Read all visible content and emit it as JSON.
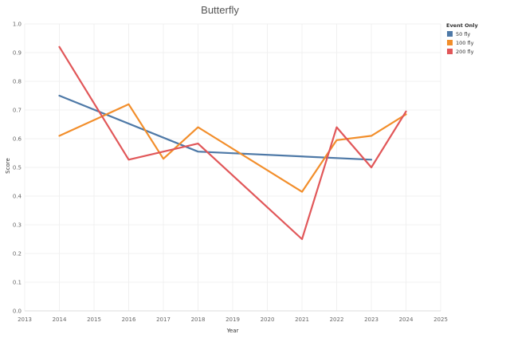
{
  "chart_data": {
    "type": "line",
    "title": "Butterfly",
    "xlabel": "Year",
    "ylabel": "Score",
    "xlim": [
      2013,
      2025
    ],
    "ylim": [
      0.0,
      1.0
    ],
    "x_ticks": [
      "2013",
      "2014",
      "2015",
      "2016",
      "2017",
      "2018",
      "2019",
      "2020",
      "2021",
      "2022",
      "2023",
      "2024",
      "2025"
    ],
    "y_ticks": [
      "0.0",
      "0.1",
      "0.2",
      "0.3",
      "0.4",
      "0.5",
      "0.6",
      "0.7",
      "0.8",
      "0.9",
      "1.0"
    ],
    "grid": true,
    "legend": {
      "title": "Event Only",
      "placement": "top-right"
    },
    "series": [
      {
        "name": "50 fly",
        "color": "#4e79a7",
        "points": [
          [
            2014,
            0.75
          ],
          [
            2018,
            0.555
          ],
          [
            2023,
            0.527
          ]
        ]
      },
      {
        "name": "100 fly",
        "color": "#f28e2b",
        "points": [
          [
            2014,
            0.61
          ],
          [
            2016,
            0.72
          ],
          [
            2017,
            0.53
          ],
          [
            2018,
            0.64
          ],
          [
            2021,
            0.415
          ],
          [
            2022,
            0.595
          ],
          [
            2023,
            0.61
          ],
          [
            2024,
            0.685
          ]
        ]
      },
      {
        "name": "200 fly",
        "color": "#e15759",
        "points": [
          [
            2014,
            0.92
          ],
          [
            2016,
            0.527
          ],
          [
            2018,
            0.583
          ],
          [
            2021,
            0.25
          ],
          [
            2022,
            0.64
          ],
          [
            2023,
            0.5
          ],
          [
            2024,
            0.695
          ]
        ]
      }
    ]
  }
}
